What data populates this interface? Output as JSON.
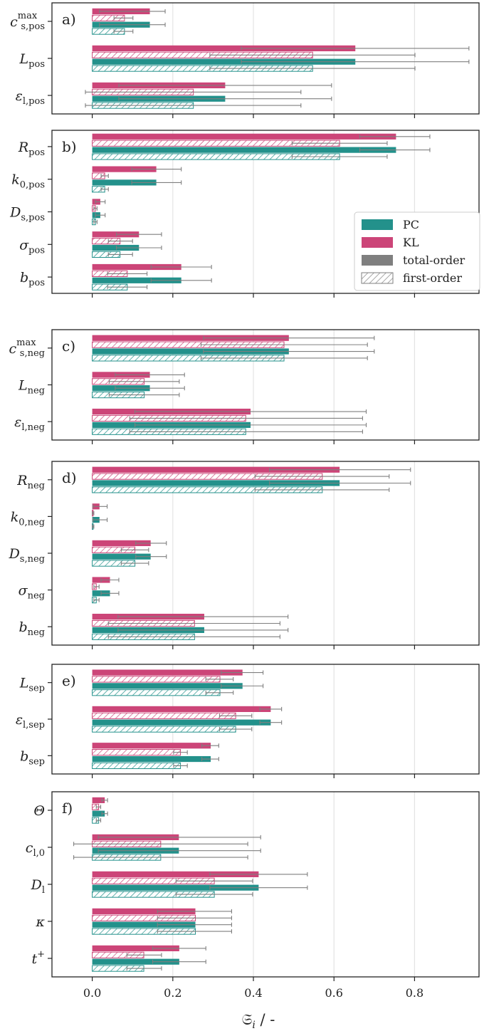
{
  "colors": {
    "pc": "#23918b",
    "kl": "#cc4578",
    "total": "#7f7f7f",
    "first": "#7f7f7f",
    "grid": "#e3e3e3",
    "axis": "#222222"
  },
  "legend": {
    "items": [
      {
        "label": "PC",
        "kind": "pc"
      },
      {
        "label": "KL",
        "kind": "kl"
      },
      {
        "label": "total-order",
        "kind": "total"
      },
      {
        "label": "first-order",
        "kind": "first"
      }
    ]
  },
  "x_axis": {
    "label": "𝔖",
    "label_sub": "i",
    "label_unit": " / -",
    "ticks": [
      {
        "value": 0.0,
        "text": "0.0"
      },
      {
        "value": 0.2,
        "text": "0.2"
      },
      {
        "value": 0.4,
        "text": "0.4"
      },
      {
        "value": 0.6,
        "text": "0.6"
      },
      {
        "value": 0.8,
        "text": "0.8"
      }
    ]
  },
  "chart_data": {
    "type": "bar",
    "orientation": "horizontal",
    "xlim": [
      -0.1,
      0.96
    ],
    "grid": "vertical at 0.2, 0.4, 0.6, 0.8",
    "legend_position": "panel b) lower-right",
    "series": [
      {
        "key": "kl_total",
        "method": "KL",
        "order": "total-order"
      },
      {
        "key": "kl_first",
        "method": "KL",
        "order": "first-order"
      },
      {
        "key": "pc_total",
        "method": "PC",
        "order": "total-order"
      },
      {
        "key": "pc_first",
        "method": "PC",
        "order": "first-order"
      }
    ],
    "panels": [
      {
        "tag": "a)",
        "params": [
          {
            "sym": "c",
            "sub": "s,pos",
            "sup": "max",
            "kl_total": [
              0.143,
              0.018,
              0.181
            ],
            "kl_first": [
              0.08,
              0.054,
              0.101
            ],
            "pc_total": [
              0.143,
              0.018,
              0.181
            ],
            "pc_first": [
              0.08,
              0.054,
              0.101
            ]
          },
          {
            "sym": "L",
            "sub": "pos",
            "kl_total": [
              0.653,
              0.37,
              0.935
            ],
            "kl_first": [
              0.547,
              0.292,
              0.801
            ],
            "pc_total": [
              0.653,
              0.37,
              0.935
            ],
            "pc_first": [
              0.547,
              0.292,
              0.801
            ]
          },
          {
            "sym": "ε",
            "sub": "l,pos",
            "kl_total": [
              0.33,
              0.066,
              0.594
            ],
            "kl_first": [
              0.251,
              -0.017,
              0.518
            ],
            "pc_total": [
              0.33,
              0.066,
              0.594
            ],
            "pc_first": [
              0.251,
              -0.017,
              0.518
            ]
          }
        ]
      },
      {
        "tag": "b)",
        "params": [
          {
            "sym": "R",
            "sub": "pos",
            "kl_total": [
              0.754,
              0.664,
              0.838
            ],
            "kl_first": [
              0.614,
              0.496,
              0.732
            ],
            "pc_total": [
              0.754,
              0.664,
              0.838
            ],
            "pc_first": [
              0.614,
              0.496,
              0.732
            ]
          },
          {
            "sym": "k",
            "sub": "0,pos",
            "kl_total": [
              0.159,
              0.098,
              0.221
            ],
            "kl_first": [
              0.031,
              0.022,
              0.04
            ],
            "pc_total": [
              0.159,
              0.098,
              0.221
            ],
            "pc_first": [
              0.031,
              0.022,
              0.04
            ]
          },
          {
            "sym": "D",
            "sub": "s,pos",
            "kl_total": [
              0.02,
              0.008,
              0.032
            ],
            "kl_first": [
              0.008,
              0.004,
              0.012
            ],
            "pc_total": [
              0.02,
              0.008,
              0.032
            ],
            "pc_first": [
              0.008,
              0.004,
              0.012
            ]
          },
          {
            "sym": "σ",
            "sub": "pos",
            "kl_total": [
              0.116,
              0.06,
              0.172
            ],
            "kl_first": [
              0.069,
              0.04,
              0.1
            ],
            "pc_total": [
              0.116,
              0.06,
              0.172
            ],
            "pc_first": [
              0.069,
              0.04,
              0.1
            ]
          },
          {
            "sym": "b",
            "sub": "pos",
            "kl_total": [
              0.221,
              0.146,
              0.296
            ],
            "kl_first": [
              0.087,
              0.038,
              0.136
            ],
            "pc_total": [
              0.221,
              0.146,
              0.296
            ],
            "pc_first": [
              0.087,
              0.038,
              0.136
            ]
          }
        ]
      },
      {
        "tag": "c)",
        "params": [
          {
            "sym": "c",
            "sub": "s,neg",
            "sup": "max",
            "kl_total": [
              0.488,
              0.276,
              0.7
            ],
            "kl_first": [
              0.476,
              0.27,
              0.683
            ],
            "pc_total": [
              0.488,
              0.276,
              0.7
            ],
            "pc_first": [
              0.476,
              0.27,
              0.683
            ]
          },
          {
            "sym": "L",
            "sub": "neg",
            "kl_total": [
              0.143,
              0.057,
              0.229
            ],
            "kl_first": [
              0.129,
              0.042,
              0.216
            ],
            "pc_total": [
              0.143,
              0.057,
              0.229
            ],
            "pc_first": [
              0.129,
              0.042,
              0.216
            ]
          },
          {
            "sym": "ε",
            "sub": "l,neg",
            "kl_total": [
              0.393,
              0.106,
              0.68
            ],
            "kl_first": [
              0.381,
              0.093,
              0.671
            ],
            "pc_total": [
              0.393,
              0.106,
              0.68
            ],
            "pc_first": [
              0.381,
              0.093,
              0.671
            ]
          }
        ]
      },
      {
        "tag": "d)",
        "params": [
          {
            "sym": "R",
            "sub": "neg",
            "kl_total": [
              0.614,
              0.44,
              0.79
            ],
            "kl_first": [
              0.571,
              0.404,
              0.737
            ],
            "pc_total": [
              0.614,
              0.44,
              0.79
            ],
            "pc_first": [
              0.571,
              0.404,
              0.737
            ]
          },
          {
            "sym": "k",
            "sub": "0,neg",
            "kl_total": [
              0.018,
              0.002,
              0.037
            ],
            "kl_first": [
              0.002,
              0.0,
              0.004
            ],
            "pc_total": [
              0.018,
              0.002,
              0.037
            ],
            "pc_first": [
              0.002,
              0.0,
              0.004
            ]
          },
          {
            "sym": "D",
            "sub": "s,neg",
            "kl_total": [
              0.145,
              0.108,
              0.184
            ],
            "kl_first": [
              0.106,
              0.072,
              0.14
            ],
            "pc_total": [
              0.145,
              0.108,
              0.184
            ],
            "pc_first": [
              0.106,
              0.072,
              0.14
            ]
          },
          {
            "sym": "σ",
            "sub": "neg",
            "kl_total": [
              0.044,
              0.022,
              0.066
            ],
            "kl_first": [
              0.01,
              0.004,
              0.017
            ],
            "pc_total": [
              0.044,
              0.022,
              0.066
            ],
            "pc_first": [
              0.01,
              0.004,
              0.017
            ]
          },
          {
            "sym": "b",
            "sub": "neg",
            "kl_total": [
              0.278,
              0.064,
              0.486
            ],
            "kl_first": [
              0.254,
              0.04,
              0.466
            ],
            "pc_total": [
              0.278,
              0.064,
              0.486
            ],
            "pc_first": [
              0.254,
              0.04,
              0.466
            ]
          }
        ]
      },
      {
        "tag": "e)",
        "params": [
          {
            "sym": "L",
            "sub": "sep",
            "kl_total": [
              0.373,
              0.32,
              0.424
            ],
            "kl_first": [
              0.317,
              0.282,
              0.35
            ],
            "pc_total": [
              0.373,
              0.32,
              0.424
            ],
            "pc_first": [
              0.317,
              0.282,
              0.35
            ]
          },
          {
            "sym": "ε",
            "sub": "l,sep",
            "kl_total": [
              0.443,
              0.416,
              0.47
            ],
            "kl_first": [
              0.356,
              0.316,
              0.396
            ],
            "pc_total": [
              0.443,
              0.416,
              0.47
            ],
            "pc_first": [
              0.356,
              0.316,
              0.396
            ]
          },
          {
            "sym": "b",
            "sub": "sep",
            "kl_total": [
              0.294,
              0.272,
              0.314
            ],
            "kl_first": [
              0.219,
              0.202,
              0.236
            ],
            "pc_total": [
              0.294,
              0.272,
              0.314
            ],
            "pc_first": [
              0.219,
              0.202,
              0.236
            ]
          }
        ]
      },
      {
        "tag": "f)",
        "params": [
          {
            "sym": "Θ",
            "sub": "",
            "kl_total": [
              0.031,
              0.024,
              0.038
            ],
            "kl_first": [
              0.016,
              0.01,
              0.021
            ],
            "pc_total": [
              0.031,
              0.024,
              0.038
            ],
            "pc_first": [
              0.016,
              0.01,
              0.021
            ]
          },
          {
            "sym": "c",
            "sub": "l,0",
            "kl_total": [
              0.215,
              0.015,
              0.418
            ],
            "kl_first": [
              0.17,
              -0.046,
              0.386
            ],
            "pc_total": [
              0.215,
              0.015,
              0.418
            ],
            "pc_first": [
              0.17,
              -0.046,
              0.386
            ]
          },
          {
            "sym": "D",
            "sub": "l",
            "kl_total": [
              0.413,
              0.292,
              0.534
            ],
            "kl_first": [
              0.303,
              0.208,
              0.398
            ],
            "pc_total": [
              0.413,
              0.292,
              0.534
            ],
            "pc_first": [
              0.303,
              0.208,
              0.398
            ]
          },
          {
            "sym": "κ",
            "sub": "",
            "kl_total": [
              0.256,
              0.162,
              0.346
            ],
            "kl_first": [
              0.256,
              0.162,
              0.346
            ],
            "pc_total": [
              0.256,
              0.162,
              0.346
            ],
            "pc_first": [
              0.256,
              0.162,
              0.346
            ]
          },
          {
            "sym": "t",
            "sub": "",
            "sup": "+",
            "kl_total": [
              0.216,
              0.15,
              0.282
            ],
            "kl_first": [
              0.128,
              0.086,
              0.172
            ],
            "pc_total": [
              0.216,
              0.15,
              0.282
            ],
            "pc_first": [
              0.128,
              0.086,
              0.172
            ]
          }
        ]
      }
    ]
  }
}
